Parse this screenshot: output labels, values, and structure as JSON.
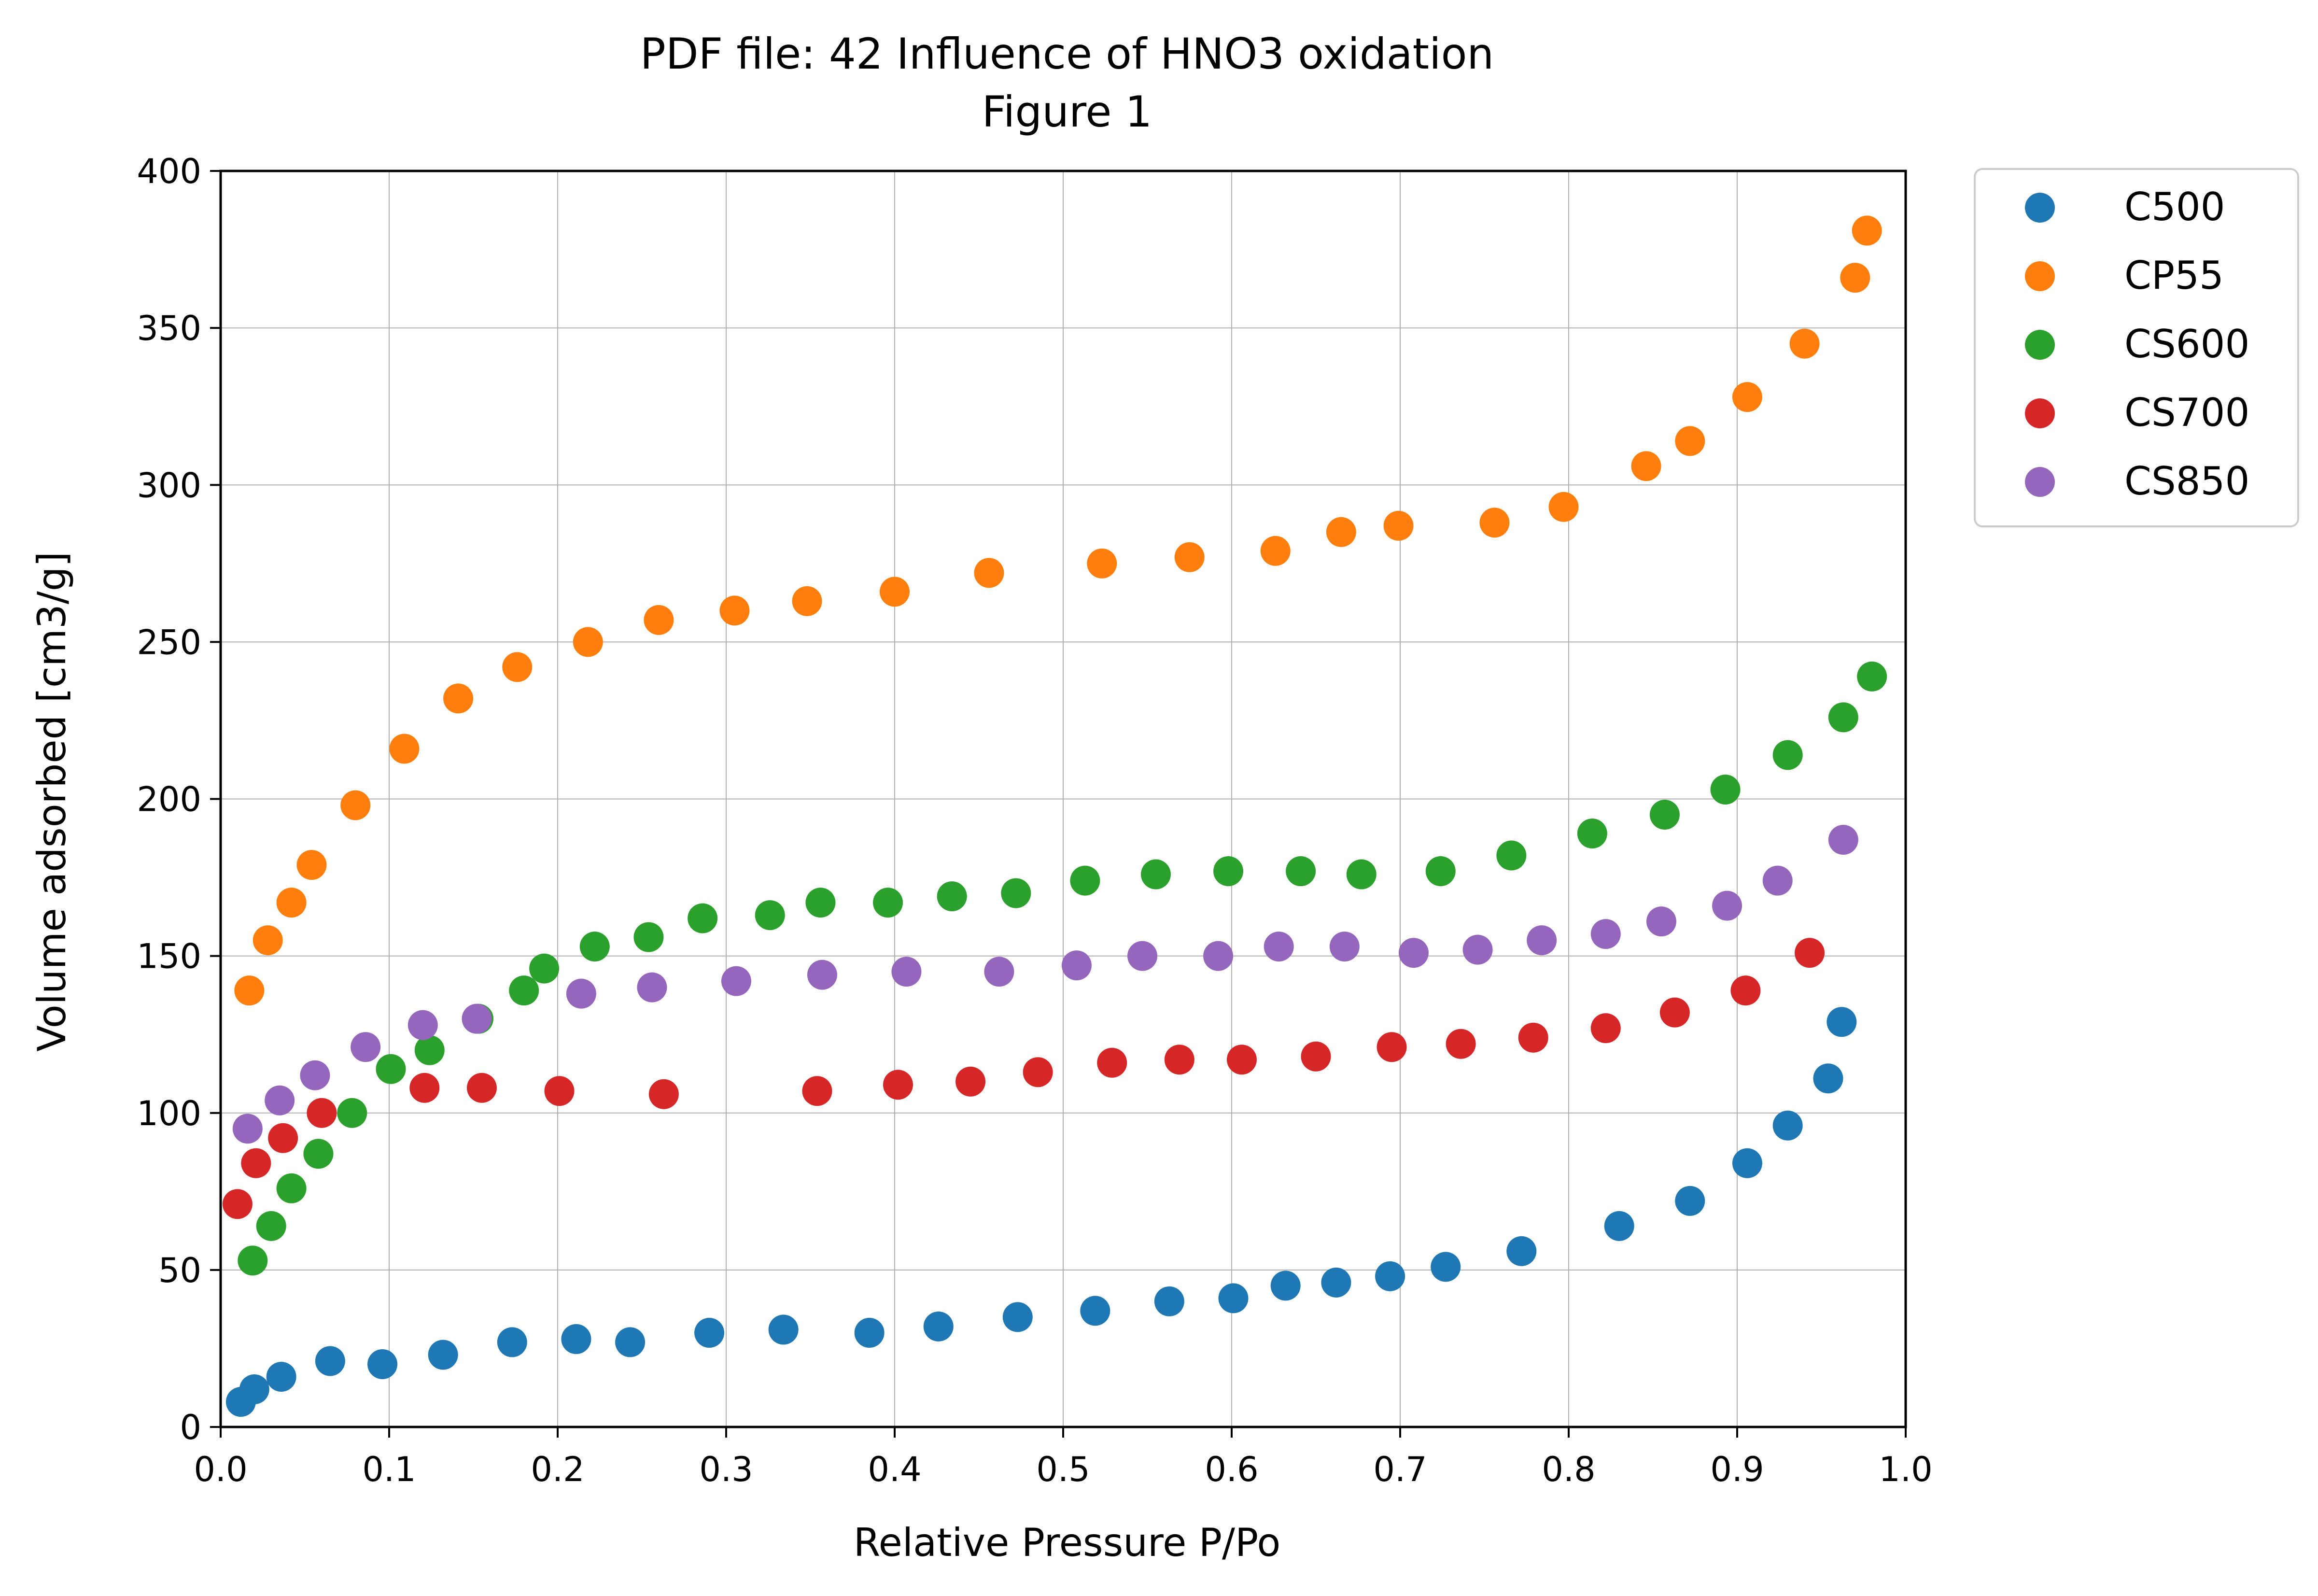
{
  "chart_data": {
    "type": "scatter",
    "title": "PDF file: 42 Influence of HNO3 oxidation",
    "subtitle": "Figure 1",
    "xlabel": "Relative Pressure P/Po",
    "ylabel": "Volume adsorbed [cm3/g]",
    "xlim": [
      0.0,
      1.0
    ],
    "ylim": [
      0,
      400
    ],
    "xticks": [
      "0.0",
      "0.1",
      "0.2",
      "0.3",
      "0.4",
      "0.5",
      "0.6",
      "0.7",
      "0.8",
      "0.9",
      "1.0"
    ],
    "yticks": [
      "0",
      "50",
      "100",
      "150",
      "200",
      "250",
      "300",
      "350",
      "400"
    ],
    "grid": true,
    "legend_position": "outside-top-right",
    "series": [
      {
        "name": "C500",
        "color": "#1f77b4",
        "points": [
          [
            0.012,
            8
          ],
          [
            0.02,
            12
          ],
          [
            0.036,
            16
          ],
          [
            0.065,
            21
          ],
          [
            0.096,
            20
          ],
          [
            0.132,
            23
          ],
          [
            0.173,
            27
          ],
          [
            0.211,
            28
          ],
          [
            0.243,
            27
          ],
          [
            0.29,
            30
          ],
          [
            0.334,
            31
          ],
          [
            0.385,
            30
          ],
          [
            0.426,
            32
          ],
          [
            0.473,
            35
          ],
          [
            0.519,
            37
          ],
          [
            0.563,
            40
          ],
          [
            0.601,
            41
          ],
          [
            0.632,
            45
          ],
          [
            0.662,
            46
          ],
          [
            0.694,
            48
          ],
          [
            0.727,
            51
          ],
          [
            0.772,
            56
          ],
          [
            0.83,
            64
          ],
          [
            0.872,
            72
          ],
          [
            0.906,
            84
          ],
          [
            0.93,
            96
          ],
          [
            0.954,
            111
          ],
          [
            0.962,
            129
          ]
        ]
      },
      {
        "name": "CP55",
        "color": "#ff7f0e",
        "points": [
          [
            0.017,
            139
          ],
          [
            0.028,
            155
          ],
          [
            0.042,
            167
          ],
          [
            0.054,
            179
          ],
          [
            0.08,
            198
          ],
          [
            0.109,
            216
          ],
          [
            0.141,
            232
          ],
          [
            0.176,
            242
          ],
          [
            0.218,
            250
          ],
          [
            0.26,
            257
          ],
          [
            0.305,
            260
          ],
          [
            0.348,
            263
          ],
          [
            0.4,
            266
          ],
          [
            0.456,
            272
          ],
          [
            0.523,
            275
          ],
          [
            0.575,
            277
          ],
          [
            0.626,
            279
          ],
          [
            0.665,
            285
          ],
          [
            0.699,
            287
          ],
          [
            0.756,
            288
          ],
          [
            0.797,
            293
          ],
          [
            0.846,
            306
          ],
          [
            0.872,
            314
          ],
          [
            0.906,
            328
          ],
          [
            0.94,
            345
          ],
          [
            0.97,
            366
          ],
          [
            0.977,
            381
          ]
        ]
      },
      {
        "name": "CS600",
        "color": "#2ca02c",
        "points": [
          [
            0.019,
            53
          ],
          [
            0.03,
            64
          ],
          [
            0.042,
            76
          ],
          [
            0.058,
            87
          ],
          [
            0.078,
            100
          ],
          [
            0.101,
            114
          ],
          [
            0.124,
            120
          ],
          [
            0.153,
            130
          ],
          [
            0.18,
            139
          ],
          [
            0.192,
            146
          ],
          [
            0.222,
            153
          ],
          [
            0.254,
            156
          ],
          [
            0.286,
            162
          ],
          [
            0.326,
            163
          ],
          [
            0.356,
            167
          ],
          [
            0.396,
            167
          ],
          [
            0.434,
            169
          ],
          [
            0.472,
            170
          ],
          [
            0.513,
            174
          ],
          [
            0.555,
            176
          ],
          [
            0.598,
            177
          ],
          [
            0.641,
            177
          ],
          [
            0.677,
            176
          ],
          [
            0.724,
            177
          ],
          [
            0.766,
            182
          ],
          [
            0.814,
            189
          ],
          [
            0.857,
            195
          ],
          [
            0.893,
            203
          ],
          [
            0.93,
            214
          ],
          [
            0.963,
            226
          ],
          [
            0.98,
            239
          ]
        ]
      },
      {
        "name": "CS700",
        "color": "#d62728",
        "points": [
          [
            0.01,
            71
          ],
          [
            0.021,
            84
          ],
          [
            0.037,
            92
          ],
          [
            0.06,
            100
          ],
          [
            0.121,
            108
          ],
          [
            0.155,
            108
          ],
          [
            0.201,
            107
          ],
          [
            0.263,
            106
          ],
          [
            0.354,
            107
          ],
          [
            0.402,
            109
          ],
          [
            0.445,
            110
          ],
          [
            0.485,
            113
          ],
          [
            0.529,
            116
          ],
          [
            0.569,
            117
          ],
          [
            0.606,
            117
          ],
          [
            0.65,
            118
          ],
          [
            0.695,
            121
          ],
          [
            0.736,
            122
          ],
          [
            0.779,
            124
          ],
          [
            0.822,
            127
          ],
          [
            0.863,
            132
          ],
          [
            0.905,
            139
          ],
          [
            0.943,
            151
          ]
        ]
      },
      {
        "name": "CS850",
        "color": "#9467bd",
        "points": [
          [
            0.016,
            95
          ],
          [
            0.035,
            104
          ],
          [
            0.056,
            112
          ],
          [
            0.086,
            121
          ],
          [
            0.12,
            128
          ],
          [
            0.152,
            130
          ],
          [
            0.214,
            138
          ],
          [
            0.256,
            140
          ],
          [
            0.306,
            142
          ],
          [
            0.357,
            144
          ],
          [
            0.407,
            145
          ],
          [
            0.462,
            145
          ],
          [
            0.508,
            147
          ],
          [
            0.547,
            150
          ],
          [
            0.592,
            150
          ],
          [
            0.628,
            153
          ],
          [
            0.667,
            153
          ],
          [
            0.708,
            151
          ],
          [
            0.746,
            152
          ],
          [
            0.784,
            155
          ],
          [
            0.822,
            157
          ],
          [
            0.855,
            161
          ],
          [
            0.894,
            166
          ],
          [
            0.924,
            174
          ],
          [
            0.963,
            187
          ]
        ]
      }
    ]
  }
}
